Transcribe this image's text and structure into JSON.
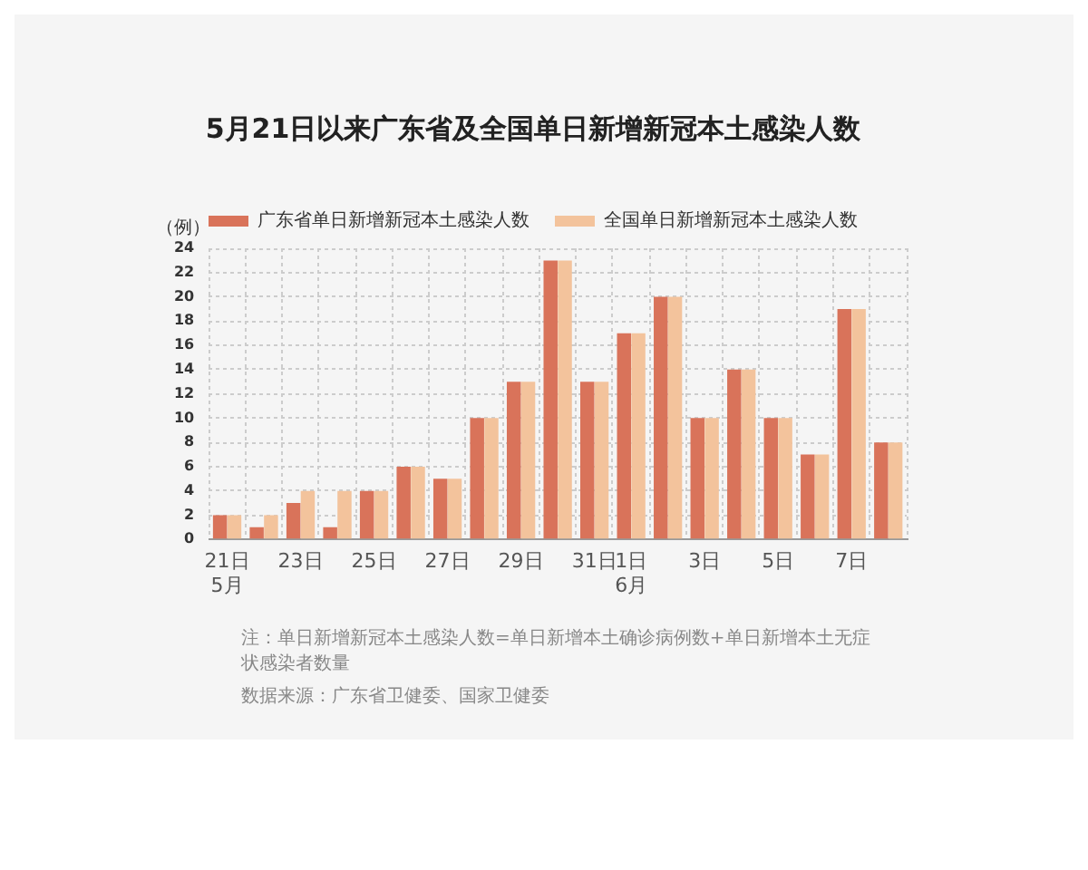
{
  "chart_data": {
    "type": "bar",
    "title": "5月21日以来广东省及全国单日新增新冠本土感染人数",
    "ylabel": "（例）",
    "categories": [
      "21日\n5月",
      null,
      "23日",
      null,
      "25日",
      null,
      "27日",
      null,
      "29日",
      null,
      "31日",
      "1日\n6月",
      null,
      "3日",
      null,
      "5日",
      null,
      "7日",
      null
    ],
    "series": [
      {
        "name": "广东省单日新增新冠本土感染人数",
        "color": "#d9735a",
        "values": [
          2,
          1,
          3,
          1,
          4,
          6,
          5,
          10,
          13,
          23,
          13,
          17,
          20,
          10,
          14,
          10,
          7,
          19,
          8
        ]
      },
      {
        "name": "全国单日新增新冠本土感染人数",
        "color": "#f3c39c",
        "values": [
          2,
          2,
          4,
          4,
          4,
          6,
          5,
          10,
          13,
          23,
          13,
          17,
          20,
          10,
          14,
          10,
          7,
          19,
          8
        ]
      }
    ],
    "ylim": [
      0,
      24
    ],
    "yticks": [
      0,
      2,
      4,
      6,
      8,
      10,
      12,
      14,
      16,
      18,
      20,
      22,
      24
    ],
    "grid": true,
    "legend": "top",
    "annotations": [
      "注：单日新增新冠本土感染人数=单日新增本土确诊病例数+单日新增本土无症状感染者数量",
      "数据来源：广东省卫健委、国家卫健委"
    ]
  }
}
